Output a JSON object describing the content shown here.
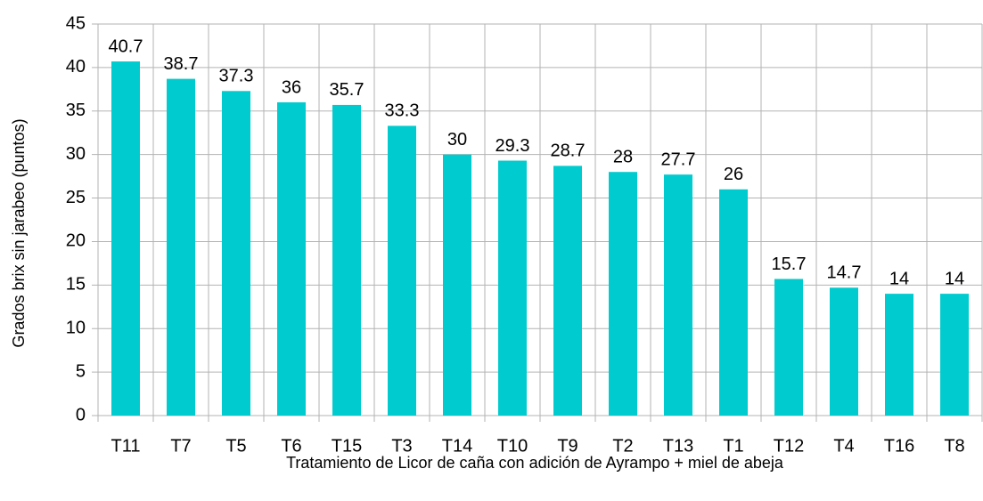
{
  "chart_data": {
    "type": "bar",
    "x_label": "Tratamiento de Licor de caña con adición de Ayrampo + miel de abeja",
    "y_label": "Grados brix sin jarabeo (puntos)",
    "categories": [
      "T11",
      "T7",
      "T5",
      "T6",
      "T15",
      "T3",
      "T14",
      "T10",
      "T9",
      "T2",
      "T13",
      "T1",
      "T12",
      "T4",
      "T16",
      "T8"
    ],
    "values": [
      40.7,
      38.7,
      37.3,
      36,
      35.7,
      33.3,
      30,
      29.3,
      28.7,
      28,
      27.7,
      26,
      15.7,
      14.7,
      14,
      14
    ],
    "color": "#00cccf",
    "ylim": [
      0,
      45
    ],
    "yticks": [
      0,
      5,
      10,
      15,
      20,
      25,
      30,
      35,
      40,
      45
    ],
    "grid": true
  }
}
